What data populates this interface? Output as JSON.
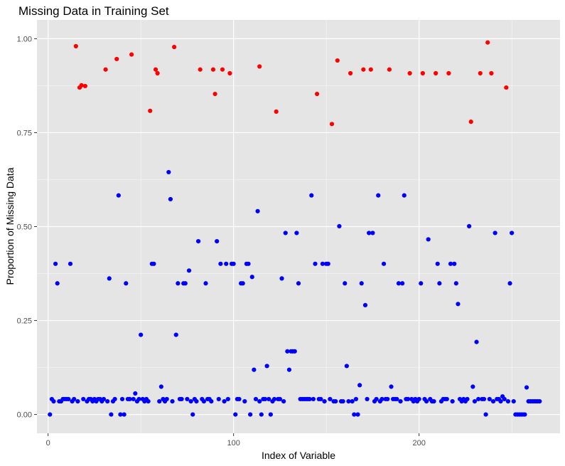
{
  "chart_data": {
    "type": "scatter",
    "title": "Missing Data in Training Set",
    "xlabel": "Index of Variable",
    "ylabel": "Proportion of Missing Data",
    "xlim": [
      -6,
      276
    ],
    "ylim": [
      -0.05,
      1.05
    ],
    "x_ticks": [
      0,
      100,
      200
    ],
    "x_tick_labels": [
      "0",
      "100",
      "200"
    ],
    "y_ticks": [
      0,
      0.25,
      0.5,
      0.75,
      1.0
    ],
    "y_tick_labels": [
      "0.00",
      "0.25",
      "0.50",
      "0.75",
      "1.00"
    ],
    "grid": true,
    "legend": "none",
    "colors": {
      "panel_background": "#e5e5e5",
      "grid_major": "#ffffff",
      "high_missing": "#ff0000",
      "low_missing": "#0000ff"
    },
    "series": [
      {
        "color": "#ff0000",
        "points": [
          [
            15,
            0.98
          ],
          [
            17,
            0.87
          ],
          [
            18,
            0.876
          ],
          [
            20,
            0.874
          ],
          [
            31,
            0.918
          ],
          [
            37,
            0.946
          ],
          [
            45,
            0.958
          ],
          [
            55,
            0.808
          ],
          [
            58,
            0.918
          ],
          [
            59,
            0.908
          ],
          [
            68,
            0.978
          ],
          [
            82,
            0.918
          ],
          [
            89,
            0.918
          ],
          [
            90,
            0.853
          ],
          [
            94,
            0.918
          ],
          [
            98,
            0.908
          ],
          [
            114,
            0.926
          ],
          [
            123,
            0.806
          ],
          [
            145,
            0.853
          ],
          [
            153,
            0.773
          ],
          [
            156,
            0.942
          ],
          [
            163,
            0.908
          ],
          [
            170,
            0.918
          ],
          [
            174,
            0.918
          ],
          [
            184,
            0.918
          ],
          [
            195,
            0.908
          ],
          [
            202,
            0.908
          ],
          [
            209,
            0.908
          ],
          [
            216,
            0.908
          ],
          [
            228,
            0.779
          ],
          [
            233,
            0.908
          ],
          [
            237,
            0.99
          ],
          [
            239,
            0.908
          ],
          [
            247,
            0.87
          ]
        ]
      },
      {
        "color": "#0000ff",
        "points": [
          [
            1,
            0.0
          ],
          [
            2,
            0.041
          ],
          [
            3,
            0.035
          ],
          [
            4,
            0.401
          ],
          [
            5,
            0.349
          ],
          [
            6,
            0.035
          ],
          [
            7,
            0.035
          ],
          [
            8,
            0.041
          ],
          [
            9,
            0.041
          ],
          [
            10,
            0.041
          ],
          [
            11,
            0.041
          ],
          [
            12,
            0.401
          ],
          [
            13,
            0.035
          ],
          [
            14,
            0.041
          ],
          [
            16,
            0.035
          ],
          [
            19,
            0.041
          ],
          [
            21,
            0.035
          ],
          [
            22,
            0.041
          ],
          [
            23,
            0.041
          ],
          [
            24,
            0.035
          ],
          [
            25,
            0.041
          ],
          [
            26,
            0.035
          ],
          [
            27,
            0.041
          ],
          [
            28,
            0.041
          ],
          [
            29,
            0.035
          ],
          [
            30,
            0.041
          ],
          [
            32,
            0.035
          ],
          [
            33,
            0.362
          ],
          [
            34,
            0.0
          ],
          [
            35,
            0.035
          ],
          [
            36,
            0.041
          ],
          [
            38,
            0.583
          ],
          [
            39,
            0.0
          ],
          [
            40,
            0.041
          ],
          [
            41,
            0.0
          ],
          [
            42,
            0.349
          ],
          [
            43,
            0.041
          ],
          [
            44,
            0.041
          ],
          [
            46,
            0.041
          ],
          [
            47,
            0.056
          ],
          [
            48,
            0.035
          ],
          [
            49,
            0.041
          ],
          [
            50,
            0.212
          ],
          [
            51,
            0.041
          ],
          [
            52,
            0.035
          ],
          [
            53,
            0.041
          ],
          [
            54,
            0.035
          ],
          [
            56,
            0.401
          ],
          [
            57,
            0.401
          ],
          [
            60,
            0.035
          ],
          [
            61,
            0.074
          ],
          [
            62,
            0.041
          ],
          [
            63,
            0.035
          ],
          [
            64,
            0.041
          ],
          [
            65,
            0.645
          ],
          [
            66,
            0.573
          ],
          [
            67,
            0.035
          ],
          [
            69,
            0.212
          ],
          [
            70,
            0.349
          ],
          [
            71,
            0.041
          ],
          [
            72,
            0.041
          ],
          [
            73,
            0.349
          ],
          [
            74,
            0.349
          ],
          [
            75,
            0.041
          ],
          [
            76,
            0.383
          ],
          [
            77,
            0.035
          ],
          [
            78,
            0.0
          ],
          [
            79,
            0.041
          ],
          [
            80,
            0.035
          ],
          [
            81,
            0.461
          ],
          [
            83,
            0.041
          ],
          [
            84,
            0.035
          ],
          [
            85,
            0.349
          ],
          [
            86,
            0.041
          ],
          [
            87,
            0.041
          ],
          [
            88,
            0.035
          ],
          [
            91,
            0.461
          ],
          [
            92,
            0.041
          ],
          [
            93,
            0.401
          ],
          [
            95,
            0.035
          ],
          [
            96,
            0.401
          ],
          [
            97,
            0.041
          ],
          [
            99,
            0.401
          ],
          [
            100,
            0.401
          ],
          [
            101,
            0.0
          ],
          [
            102,
            0.041
          ],
          [
            103,
            0.041
          ],
          [
            104,
            0.349
          ],
          [
            105,
            0.349
          ],
          [
            106,
            0.035
          ],
          [
            107,
            0.401
          ],
          [
            108,
            0.401
          ],
          [
            109,
            0.0
          ],
          [
            110,
            0.366
          ],
          [
            111,
            0.119
          ],
          [
            112,
            0.041
          ],
          [
            113,
            0.541
          ],
          [
            114,
            0.035
          ],
          [
            115,
            0.0
          ],
          [
            116,
            0.041
          ],
          [
            117,
            0.041
          ],
          [
            118,
            0.129
          ],
          [
            119,
            0.041
          ],
          [
            120,
            0.0
          ],
          [
            121,
            0.035
          ],
          [
            122,
            0.041
          ],
          [
            124,
            0.041
          ],
          [
            125,
            0.041
          ],
          [
            126,
            0.362
          ],
          [
            127,
            0.035
          ],
          [
            128,
            0.483
          ],
          [
            129,
            0.168
          ],
          [
            130,
            0.119
          ],
          [
            131,
            0.168
          ],
          [
            132,
            0.168
          ],
          [
            133,
            0.168
          ],
          [
            134,
            0.483
          ],
          [
            135,
            0.349
          ],
          [
            136,
            0.041
          ],
          [
            137,
            0.041
          ],
          [
            138,
            0.041
          ],
          [
            139,
            0.041
          ],
          [
            140,
            0.041
          ],
          [
            141,
            0.041
          ],
          [
            142,
            0.583
          ],
          [
            143,
            0.041
          ],
          [
            144,
            0.401
          ],
          [
            146,
            0.041
          ],
          [
            147,
            0.041
          ],
          [
            148,
            0.401
          ],
          [
            149,
            0.035
          ],
          [
            150,
            0.401
          ],
          [
            151,
            0.401
          ],
          [
            152,
            0.041
          ],
          [
            154,
            0.035
          ],
          [
            155,
            0.035
          ],
          [
            157,
            0.501
          ],
          [
            158,
            0.035
          ],
          [
            159,
            0.035
          ],
          [
            160,
            0.349
          ],
          [
            161,
            0.129
          ],
          [
            162,
            0.035
          ],
          [
            164,
            0.035
          ],
          [
            165,
            0.0
          ],
          [
            166,
            0.041
          ],
          [
            167,
            0.0
          ],
          [
            168,
            0.078
          ],
          [
            169,
            0.349
          ],
          [
            171,
            0.291
          ],
          [
            172,
            0.041
          ],
          [
            173,
            0.483
          ],
          [
            175,
            0.483
          ],
          [
            176,
            0.035
          ],
          [
            177,
            0.041
          ],
          [
            178,
            0.583
          ],
          [
            179,
            0.035
          ],
          [
            180,
            0.041
          ],
          [
            181,
            0.401
          ],
          [
            182,
            0.041
          ],
          [
            183,
            0.041
          ],
          [
            185,
            0.074
          ],
          [
            186,
            0.041
          ],
          [
            187,
            0.041
          ],
          [
            188,
            0.041
          ],
          [
            189,
            0.349
          ],
          [
            190,
            0.035
          ],
          [
            191,
            0.349
          ],
          [
            192,
            0.583
          ],
          [
            193,
            0.041
          ],
          [
            194,
            0.041
          ],
          [
            196,
            0.041
          ],
          [
            197,
            0.035
          ],
          [
            198,
            0.041
          ],
          [
            199,
            0.035
          ],
          [
            200,
            0.041
          ],
          [
            201,
            0.349
          ],
          [
            203,
            0.041
          ],
          [
            204,
            0.035
          ],
          [
            205,
            0.466
          ],
          [
            206,
            0.041
          ],
          [
            207,
            0.035
          ],
          [
            208,
            0.035
          ],
          [
            210,
            0.401
          ],
          [
            211,
            0.349
          ],
          [
            212,
            0.035
          ],
          [
            213,
            0.041
          ],
          [
            214,
            0.041
          ],
          [
            215,
            0.041
          ],
          [
            217,
            0.401
          ],
          [
            218,
            0.035
          ],
          [
            219,
            0.401
          ],
          [
            220,
            0.349
          ],
          [
            221,
            0.294
          ],
          [
            222,
            0.041
          ],
          [
            223,
            0.035
          ],
          [
            224,
            0.041
          ],
          [
            225,
            0.035
          ],
          [
            226,
            0.041
          ],
          [
            227,
            0.501
          ],
          [
            229,
            0.074
          ],
          [
            230,
            0.035
          ],
          [
            231,
            0.193
          ],
          [
            232,
            0.041
          ],
          [
            234,
            0.041
          ],
          [
            235,
            0.041
          ],
          [
            236,
            0.0
          ],
          [
            238,
            0.041
          ],
          [
            240,
            0.035
          ],
          [
            241,
            0.483
          ],
          [
            242,
            0.041
          ],
          [
            243,
            0.041
          ],
          [
            244,
            0.035
          ],
          [
            245,
            0.048
          ],
          [
            246,
            0.041
          ],
          [
            248,
            0.035
          ],
          [
            249,
            0.349
          ],
          [
            250,
            0.483
          ],
          [
            251,
            0.035
          ],
          [
            252,
            0.0
          ],
          [
            253,
            0.0
          ],
          [
            254,
            0.0
          ],
          [
            255,
            0.0
          ],
          [
            256,
            0.0
          ],
          [
            257,
            0.0
          ],
          [
            258,
            0.072
          ],
          [
            259,
            0.035
          ],
          [
            260,
            0.035
          ],
          [
            261,
            0.035
          ],
          [
            262,
            0.035
          ],
          [
            263,
            0.035
          ],
          [
            264,
            0.035
          ],
          [
            265,
            0.035
          ]
        ]
      }
    ]
  }
}
